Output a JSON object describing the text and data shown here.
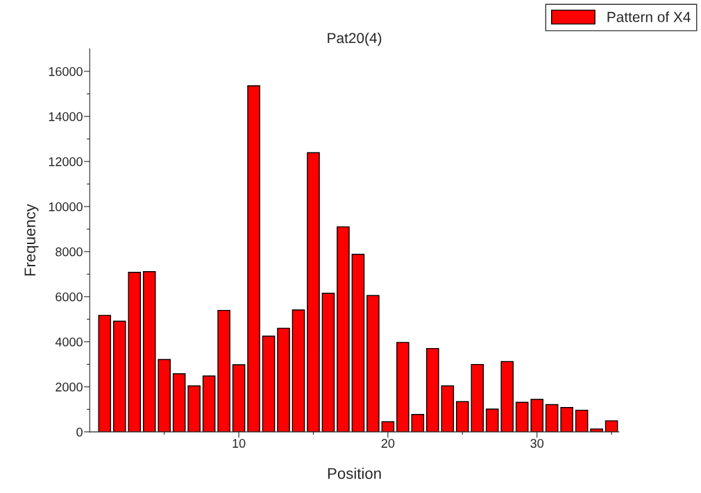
{
  "chart_data": {
    "type": "bar",
    "title": "Pat20(4)",
    "xlabel": "Position",
    "ylabel": "Frequency",
    "x": [
      1,
      2,
      3,
      4,
      5,
      6,
      7,
      8,
      9,
      10,
      11,
      12,
      13,
      14,
      15,
      16,
      17,
      18,
      19,
      20,
      21,
      22,
      23,
      24,
      25,
      26,
      27,
      28,
      29,
      30,
      31,
      32,
      33,
      34,
      35
    ],
    "series": [
      {
        "name": "Pattern of X4",
        "color": "#ff0000",
        "values": [
          5170,
          4910,
          7080,
          7110,
          3210,
          2580,
          2040,
          2480,
          5390,
          2980,
          15360,
          4250,
          4600,
          5410,
          12390,
          6150,
          9100,
          7880,
          6050,
          450,
          3970,
          770,
          3700,
          2040,
          1340,
          2990,
          1010,
          3120,
          1310,
          1440,
          1210,
          1080,
          960,
          130,
          490
        ]
      }
    ],
    "xlim": [
      0,
      35.5
    ],
    "xticks": [
      {
        "value": 5,
        "label": null
      },
      10,
      {
        "value": 15,
        "label": null
      },
      20,
      {
        "value": 25,
        "label": null
      },
      30,
      {
        "value": 35,
        "label": null
      }
    ],
    "ylim": [
      0,
      17000
    ],
    "yticks": [
      0,
      {
        "value": 1000,
        "label": null
      },
      2000,
      {
        "value": 3000,
        "label": null
      },
      4000,
      {
        "value": 5000,
        "label": null
      },
      6000,
      {
        "value": 7000,
        "label": null
      },
      8000,
      {
        "value": 9000,
        "label": null
      },
      10000,
      {
        "value": 11000,
        "label": null
      },
      12000,
      {
        "value": 13000,
        "label": null
      },
      14000,
      {
        "value": 15000,
        "label": null
      },
      16000
    ],
    "grid": false,
    "legend": "top right"
  }
}
